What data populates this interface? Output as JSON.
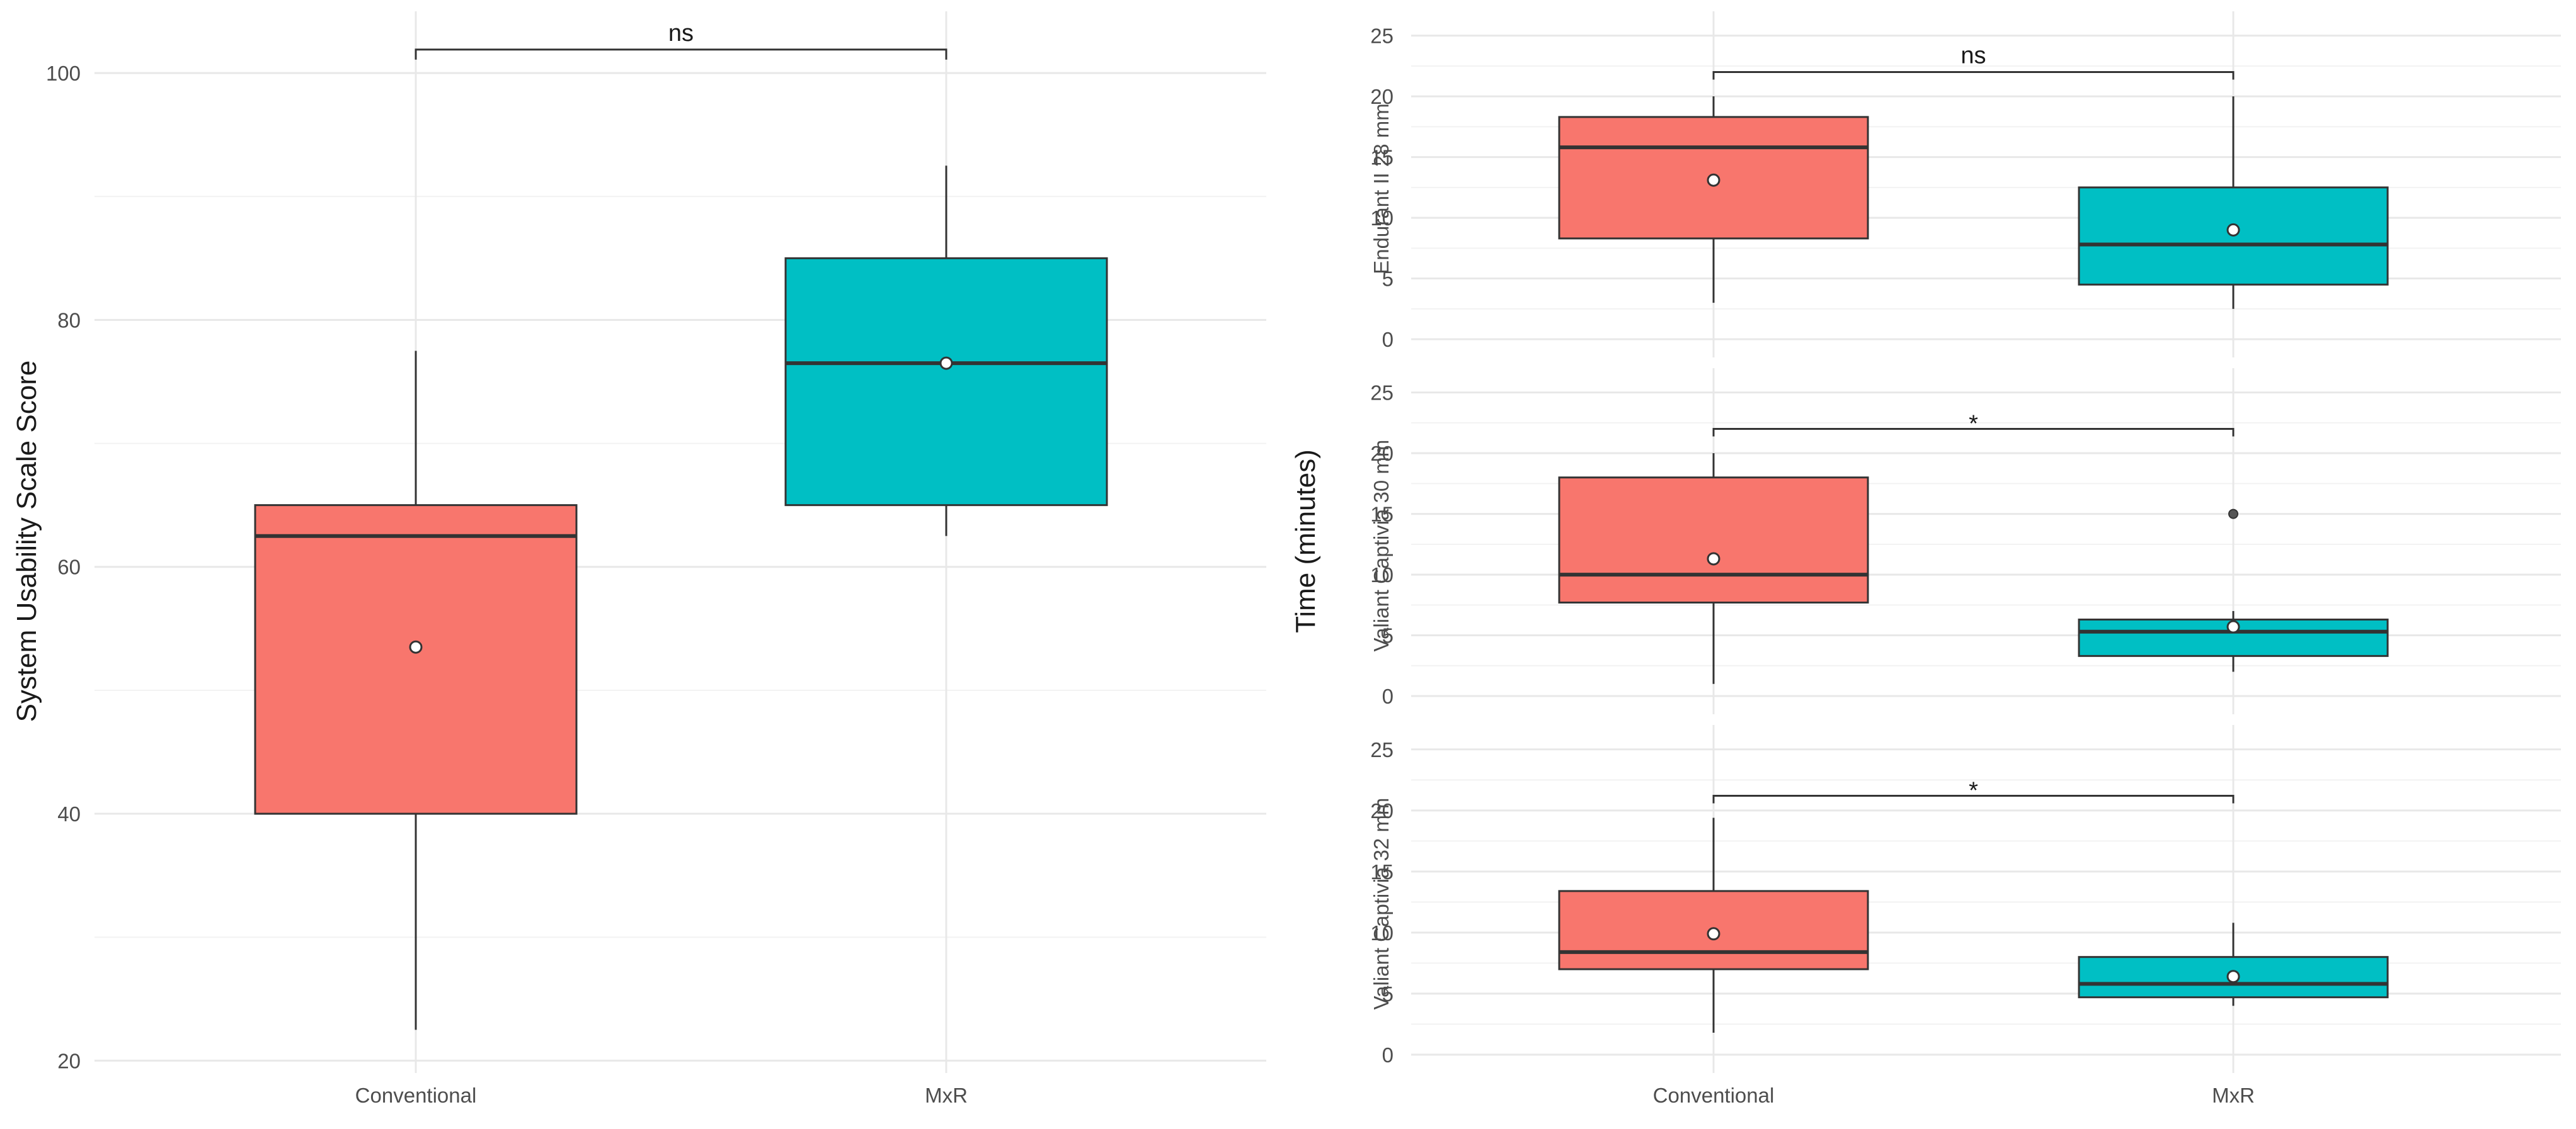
{
  "colors": {
    "conventional": "#F8766D",
    "mxr": "#00BFC4"
  },
  "chart_data": [
    {
      "type": "box",
      "id": "sus",
      "title": "",
      "xlabel": "",
      "ylabel": "System Usability Scale Score",
      "ylim": [
        19,
        105
      ],
      "yticks": [
        20,
        40,
        60,
        80,
        100
      ],
      "categories": [
        "Conventional",
        "MxR"
      ],
      "boxes": [
        {
          "name": "Conventional",
          "min": 22.5,
          "q1": 40,
          "median": 62.5,
          "q3": 65,
          "max": 77.5,
          "mean": 53.5,
          "outliers": []
        },
        {
          "name": "MxR",
          "min": 62.5,
          "q1": 65,
          "median": 76.5,
          "q3": 85,
          "max": 92.5,
          "mean": 76.5,
          "outliers": []
        }
      ],
      "significance": {
        "label": "ns",
        "y": 101.9
      }
    },
    {
      "type": "box",
      "id": "endurant",
      "facet_label": "Endurant II 28 mm",
      "ylim": [
        -1.5,
        27
      ],
      "yticks": [
        0,
        5,
        10,
        15,
        20,
        25
      ],
      "categories": [
        "Conventional",
        "MxR"
      ],
      "boxes": [
        {
          "name": "Conventional",
          "min": 3,
          "q1": 8.3,
          "median": 15.8,
          "q3": 18.3,
          "max": 20,
          "mean": 13.1,
          "outliers": []
        },
        {
          "name": "MxR",
          "min": 2.5,
          "q1": 4.5,
          "median": 7.8,
          "q3": 12.5,
          "max": 20,
          "mean": 9,
          "outliers": []
        }
      ],
      "significance": {
        "label": "ns",
        "y": 22
      }
    },
    {
      "type": "box",
      "id": "valiant30",
      "facet_label": "Valiant Captivia 30 mm",
      "ylim": [
        -1.5,
        27
      ],
      "yticks": [
        0,
        5,
        10,
        15,
        20,
        25
      ],
      "categories": [
        "Conventional",
        "MxR"
      ],
      "boxes": [
        {
          "name": "Conventional",
          "min": 1,
          "q1": 7.7,
          "median": 10,
          "q3": 18,
          "max": 20,
          "mean": 11.3,
          "outliers": []
        },
        {
          "name": "MxR",
          "min": 2,
          "q1": 3.3,
          "median": 5.3,
          "q3": 6.3,
          "max": 7,
          "mean": 5.7,
          "outliers": [
            15
          ]
        }
      ],
      "significance": {
        "label": "*",
        "y": 22
      }
    },
    {
      "type": "box",
      "id": "valiant32",
      "facet_label": "Valiant Captivia 32 mm",
      "ylim": [
        -1.5,
        27
      ],
      "yticks": [
        0,
        5,
        10,
        15,
        20,
        25
      ],
      "categories": [
        "Conventional",
        "MxR"
      ],
      "boxes": [
        {
          "name": "Conventional",
          "min": 1.8,
          "q1": 7,
          "median": 8.4,
          "q3": 13.4,
          "max": 19.4,
          "mean": 9.9,
          "outliers": []
        },
        {
          "name": "MxR",
          "min": 4,
          "q1": 4.7,
          "median": 5.8,
          "q3": 8,
          "max": 10.8,
          "mean": 6.4,
          "outliers": []
        }
      ],
      "significance": {
        "label": "*",
        "y": 21.2
      }
    }
  ],
  "right_panel": {
    "ylabel": "Time (minutes)",
    "categories": [
      "Conventional",
      "MxR"
    ]
  }
}
